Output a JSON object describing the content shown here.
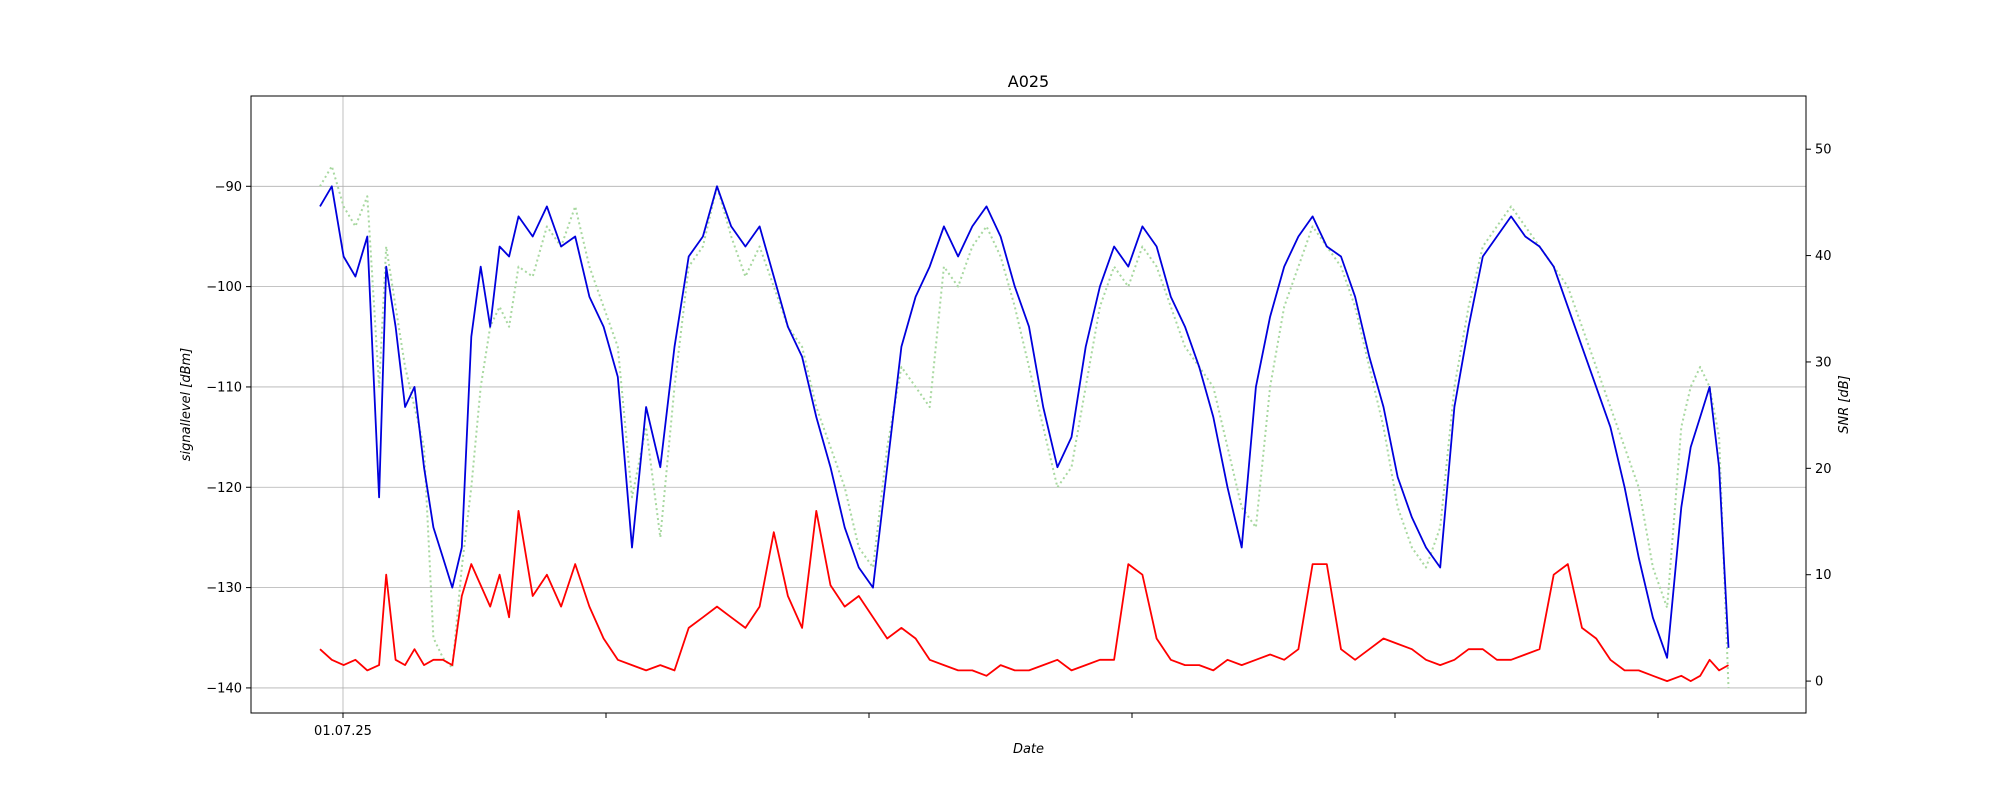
{
  "chart_data": {
    "type": "line",
    "title": "A025",
    "xlabel": "Date",
    "ylabel_left": "signallevel [dBm]",
    "ylabel_right": "SNR [dB]",
    "x_tick_labels": [
      "01.07.25"
    ],
    "ylim_left": [
      -142.5,
      -81
    ],
    "ylim_right": [
      -3,
      55
    ],
    "yticks_left": [
      -140,
      -130,
      -120,
      -110,
      -100,
      -90
    ],
    "yticks_right": [
      0,
      10,
      20,
      30,
      40,
      50
    ],
    "x_range": [
      0,
      6
    ],
    "grid": true,
    "series": [
      {
        "axis": "left",
        "color": "#0000dd",
        "style": "solid",
        "x": [
          0.0,
          0.05,
          0.1,
          0.15,
          0.2,
          0.25,
          0.28,
          0.32,
          0.36,
          0.4,
          0.44,
          0.48,
          0.52,
          0.56,
          0.6,
          0.64,
          0.68,
          0.72,
          0.76,
          0.8,
          0.84,
          0.9,
          0.96,
          1.02,
          1.08,
          1.14,
          1.2,
          1.26,
          1.32,
          1.38,
          1.44,
          1.5,
          1.56,
          1.62,
          1.68,
          1.74,
          1.8,
          1.86,
          1.92,
          1.98,
          2.04,
          2.1,
          2.16,
          2.22,
          2.28,
          2.34,
          2.4,
          2.46,
          2.52,
          2.58,
          2.64,
          2.7,
          2.76,
          2.82,
          2.88,
          2.94,
          3.0,
          3.06,
          3.12,
          3.18,
          3.24,
          3.3,
          3.36,
          3.42,
          3.48,
          3.54,
          3.6,
          3.66,
          3.72,
          3.78,
          3.84,
          3.9,
          3.96,
          4.02,
          4.08,
          4.14,
          4.2,
          4.26,
          4.32,
          4.38,
          4.44,
          4.5,
          4.56,
          4.62,
          4.68,
          4.74,
          4.8,
          4.86,
          4.92,
          4.98,
          5.04,
          5.1,
          5.16,
          5.22,
          5.28,
          5.34,
          5.4,
          5.46,
          5.52,
          5.58,
          5.64,
          5.7,
          5.76,
          5.8,
          5.84,
          5.88,
          5.92,
          5.96
        ],
        "y": [
          -92,
          -90,
          -97,
          -99,
          -95,
          -121,
          -98,
          -104,
          -112,
          -110,
          -118,
          -124,
          -127,
          -130,
          -126,
          -105,
          -98,
          -104,
          -96,
          -97,
          -93,
          -95,
          -92,
          -96,
          -95,
          -101,
          -104,
          -109,
          -126,
          -112,
          -118,
          -106,
          -97,
          -95,
          -90,
          -94,
          -96,
          -94,
          -99,
          -104,
          -107,
          -113,
          -118,
          -124,
          -128,
          -130,
          -118,
          -106,
          -101,
          -98,
          -94,
          -97,
          -94,
          -92,
          -95,
          -100,
          -104,
          -112,
          -118,
          -115,
          -106,
          -100,
          -96,
          -98,
          -94,
          -96,
          -101,
          -104,
          -108,
          -113,
          -120,
          -126,
          -110,
          -103,
          -98,
          -95,
          -93,
          -96,
          -97,
          -101,
          -107,
          -112,
          -119,
          -123,
          -126,
          -128,
          -112,
          -104,
          -97,
          -95,
          -93,
          -95,
          -96,
          -98,
          -102,
          -106,
          -110,
          -114,
          -120,
          -127,
          -133,
          -137,
          -122,
          -116,
          -113,
          -110,
          -118,
          -136
        ]
      },
      {
        "axis": "right",
        "color": "#ff0000",
        "style": "solid",
        "x": [
          0.0,
          0.05,
          0.1,
          0.15,
          0.2,
          0.25,
          0.28,
          0.32,
          0.36,
          0.4,
          0.44,
          0.48,
          0.52,
          0.56,
          0.6,
          0.64,
          0.68,
          0.72,
          0.76,
          0.8,
          0.84,
          0.9,
          0.96,
          1.02,
          1.08,
          1.14,
          1.2,
          1.26,
          1.32,
          1.38,
          1.44,
          1.5,
          1.56,
          1.62,
          1.68,
          1.74,
          1.8,
          1.86,
          1.92,
          1.98,
          2.04,
          2.1,
          2.16,
          2.22,
          2.28,
          2.34,
          2.4,
          2.46,
          2.52,
          2.58,
          2.64,
          2.7,
          2.76,
          2.82,
          2.88,
          2.94,
          3.0,
          3.06,
          3.12,
          3.18,
          3.24,
          3.3,
          3.36,
          3.42,
          3.48,
          3.54,
          3.6,
          3.66,
          3.72,
          3.78,
          3.84,
          3.9,
          3.96,
          4.02,
          4.08,
          4.14,
          4.2,
          4.26,
          4.32,
          4.38,
          4.44,
          4.5,
          4.56,
          4.62,
          4.68,
          4.74,
          4.8,
          4.86,
          4.92,
          4.98,
          5.04,
          5.1,
          5.16,
          5.22,
          5.28,
          5.34,
          5.4,
          5.46,
          5.52,
          5.58,
          5.64,
          5.7,
          5.76,
          5.8,
          5.84,
          5.88,
          5.92,
          5.96
        ],
        "y": [
          3,
          2,
          1.5,
          2,
          1,
          1.5,
          10,
          2,
          1.5,
          3,
          1.5,
          2,
          2,
          1.5,
          8,
          11,
          9,
          7,
          10,
          6,
          16,
          8,
          10,
          7,
          11,
          7,
          4,
          2,
          1.5,
          1,
          1.5,
          1,
          5,
          6,
          7,
          6,
          5,
          7,
          14,
          8,
          5,
          16,
          9,
          7,
          8,
          6,
          4,
          5,
          4,
          2,
          1.5,
          1,
          1,
          0.5,
          1.5,
          1,
          1,
          1.5,
          2,
          1,
          1.5,
          2,
          2,
          11,
          10,
          4,
          2,
          1.5,
          1.5,
          1,
          2,
          1.5,
          2,
          2.5,
          2,
          3,
          11,
          11,
          3,
          2,
          3,
          4,
          3.5,
          3,
          2,
          1.5,
          2,
          3,
          3,
          2,
          2,
          2.5,
          3,
          10,
          11,
          5,
          4,
          2,
          1,
          1,
          0.5,
          0,
          0.5,
          0,
          0.5,
          2,
          1,
          1.5
        ]
      },
      {
        "axis": "left",
        "color": "#a8d8a0",
        "style": "dotted",
        "x": [
          0.0,
          0.05,
          0.1,
          0.15,
          0.2,
          0.25,
          0.28,
          0.32,
          0.36,
          0.4,
          0.44,
          0.48,
          0.52,
          0.56,
          0.6,
          0.64,
          0.68,
          0.72,
          0.76,
          0.8,
          0.84,
          0.9,
          0.96,
          1.02,
          1.08,
          1.14,
          1.2,
          1.26,
          1.32,
          1.38,
          1.44,
          1.5,
          1.56,
          1.62,
          1.68,
          1.74,
          1.8,
          1.86,
          1.92,
          1.98,
          2.04,
          2.1,
          2.16,
          2.22,
          2.28,
          2.34,
          2.4,
          2.46,
          2.52,
          2.58,
          2.64,
          2.7,
          2.76,
          2.82,
          2.88,
          2.94,
          3.0,
          3.06,
          3.12,
          3.18,
          3.24,
          3.3,
          3.36,
          3.42,
          3.48,
          3.54,
          3.6,
          3.66,
          3.72,
          3.78,
          3.84,
          3.9,
          3.96,
          4.02,
          4.08,
          4.14,
          4.2,
          4.26,
          4.32,
          4.38,
          4.44,
          4.5,
          4.56,
          4.62,
          4.68,
          4.74,
          4.8,
          4.86,
          4.92,
          4.98,
          5.04,
          5.1,
          5.16,
          5.22,
          5.28,
          5.34,
          5.4,
          5.46,
          5.52,
          5.58,
          5.64,
          5.7,
          5.76,
          5.8,
          5.84,
          5.88,
          5.92,
          5.96
        ],
        "y": [
          -90,
          -88,
          -92,
          -94,
          -91,
          -110,
          -96,
          -102,
          -108,
          -112,
          -116,
          -135,
          -137,
          -138,
          -128,
          -120,
          -110,
          -104,
          -102,
          -104,
          -98,
          -99,
          -94,
          -96,
          -92,
          -98,
          -102,
          -106,
          -121,
          -114,
          -125,
          -110,
          -98,
          -96,
          -90,
          -95,
          -99,
          -96,
          -100,
          -104,
          -106,
          -112,
          -116,
          -120,
          -126,
          -128,
          -116,
          -108,
          -110,
          -112,
          -98,
          -100,
          -96,
          -94,
          -97,
          -102,
          -108,
          -114,
          -120,
          -118,
          -110,
          -102,
          -98,
          -100,
          -96,
          -98,
          -102,
          -106,
          -108,
          -110,
          -116,
          -122,
          -124,
          -110,
          -102,
          -98,
          -94,
          -96,
          -98,
          -102,
          -108,
          -114,
          -122,
          -126,
          -128,
          -124,
          -110,
          -102,
          -96,
          -94,
          -92,
          -94,
          -96,
          -98,
          -100,
          -104,
          -108,
          -112,
          -116,
          -120,
          -128,
          -132,
          -114,
          -110,
          -108,
          -110,
          -115,
          -140
        ]
      }
    ]
  }
}
